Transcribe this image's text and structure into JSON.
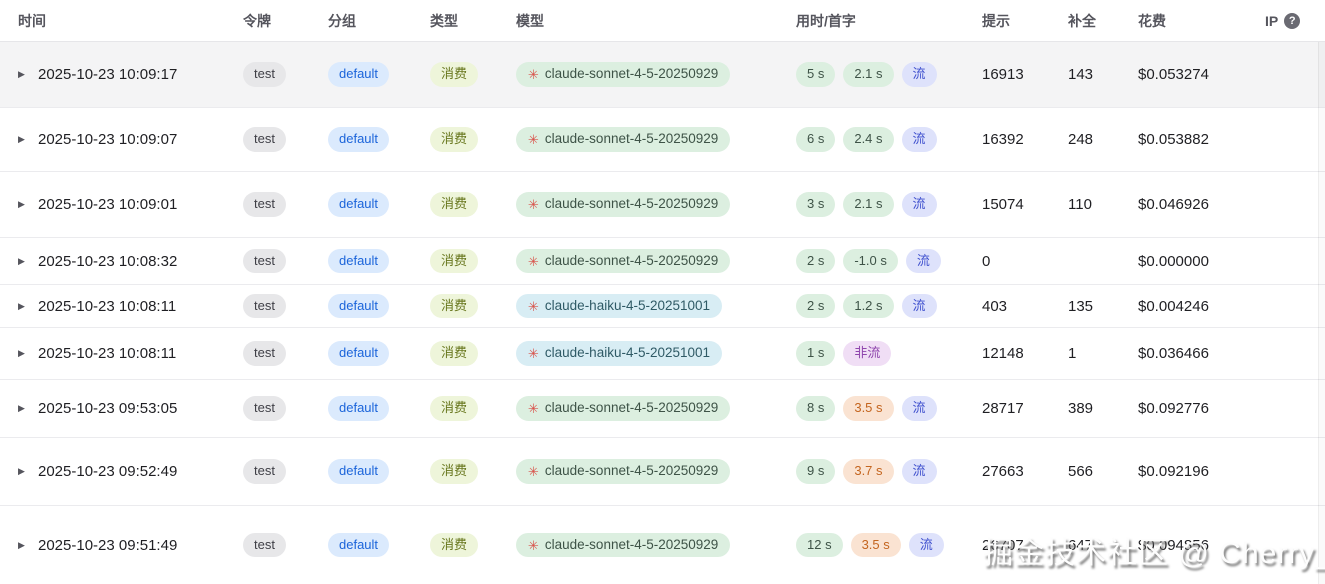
{
  "header": {
    "columns": [
      "时间",
      "令牌",
      "分组",
      "类型",
      "模型",
      "用时/首字",
      "提示",
      "补全",
      "花费",
      "IP"
    ]
  },
  "icons": {
    "expand_caret": "▶",
    "model_provider": "✳",
    "ip_help": "?"
  },
  "colors": {
    "row_highlight": "#f4f4f5",
    "pill_gray_bg": "#e7e7e9",
    "pill_gray_text": "#3f3f46",
    "pill_blue_bg": "#dbeafd",
    "pill_blue_text": "#1b64da",
    "pill_lime_bg": "#eef5da",
    "pill_lime_text": "#67761c",
    "pill_green_bg": "#dcefe0",
    "pill_green_text": "#3e5347",
    "pill_cyan_bg": "#d8edf4",
    "pill_cyan_text": "#2f5a66",
    "pill_orange_bg": "#fae3d2",
    "pill_orange_text": "#c4651f",
    "pill_indigo_bg": "#dee2fb",
    "pill_indigo_text": "#4152cf",
    "pill_purple_bg": "#f0def5",
    "pill_purple_text": "#8f46ad",
    "model_icon": "#d9534b"
  },
  "watermark": "掘金技术社区 @ Cherry_",
  "rows": [
    {
      "time": "2025-10-23 10:09:17",
      "token": "test",
      "group": "default",
      "type": "消费",
      "model": "claude-sonnet-4-5-20250929",
      "model_color": "green",
      "duration": "5 s",
      "first_token": "2.1 s",
      "first_token_color": "green",
      "stream": "流",
      "stream_color": "indigo",
      "prompt": "16913",
      "completion": "143",
      "cost": "$0.053274",
      "highlighted": true
    },
    {
      "time": "2025-10-23 10:09:07",
      "token": "test",
      "group": "default",
      "type": "消费",
      "model": "claude-sonnet-4-5-20250929",
      "model_color": "green",
      "duration": "6 s",
      "first_token": "2.4 s",
      "first_token_color": "green",
      "stream": "流",
      "stream_color": "indigo",
      "prompt": "16392",
      "completion": "248",
      "cost": "$0.053882",
      "highlighted": false
    },
    {
      "time": "2025-10-23 10:09:01",
      "token": "test",
      "group": "default",
      "type": "消费",
      "model": "claude-sonnet-4-5-20250929",
      "model_color": "green",
      "duration": "3 s",
      "first_token": "2.1 s",
      "first_token_color": "green",
      "stream": "流",
      "stream_color": "indigo",
      "prompt": "15074",
      "completion": "110",
      "cost": "$0.046926",
      "highlighted": false
    },
    {
      "time": "2025-10-23 10:08:32",
      "token": "test",
      "group": "default",
      "type": "消费",
      "model": "claude-sonnet-4-5-20250929",
      "model_color": "green",
      "duration": "2 s",
      "first_token": "-1.0 s",
      "first_token_color": "green",
      "stream": "流",
      "stream_color": "indigo",
      "prompt": "0",
      "completion": "",
      "cost": "$0.000000",
      "highlighted": false
    },
    {
      "time": "2025-10-23 10:08:11",
      "token": "test",
      "group": "default",
      "type": "消费",
      "model": "claude-haiku-4-5-20251001",
      "model_color": "cyan",
      "duration": "2 s",
      "first_token": "1.2 s",
      "first_token_color": "green",
      "stream": "流",
      "stream_color": "indigo",
      "prompt": "403",
      "completion": "135",
      "cost": "$0.004246",
      "highlighted": false
    },
    {
      "time": "2025-10-23 10:08:11",
      "token": "test",
      "group": "default",
      "type": "消费",
      "model": "claude-haiku-4-5-20251001",
      "model_color": "cyan",
      "duration": "1 s",
      "first_token": "",
      "first_token_color": "",
      "stream": "非流",
      "stream_color": "purple",
      "prompt": "12148",
      "completion": "1",
      "cost": "$0.036466",
      "highlighted": false
    },
    {
      "time": "2025-10-23 09:53:05",
      "token": "test",
      "group": "default",
      "type": "消费",
      "model": "claude-sonnet-4-5-20250929",
      "model_color": "green",
      "duration": "8 s",
      "first_token": "3.5 s",
      "first_token_color": "orange",
      "stream": "流",
      "stream_color": "indigo",
      "prompt": "28717",
      "completion": "389",
      "cost": "$0.092776",
      "highlighted": false
    },
    {
      "time": "2025-10-23 09:52:49",
      "token": "test",
      "group": "default",
      "type": "消费",
      "model": "claude-sonnet-4-5-20250929",
      "model_color": "green",
      "duration": "9 s",
      "first_token": "3.7 s",
      "first_token_color": "orange",
      "stream": "流",
      "stream_color": "indigo",
      "prompt": "27663",
      "completion": "566",
      "cost": "$0.092196",
      "highlighted": false
    },
    {
      "time": "2025-10-23 09:51:49",
      "token": "test",
      "group": "default",
      "type": "消费",
      "model": "claude-sonnet-4-5-20250929",
      "model_color": "green",
      "duration": "12 s",
      "first_token": "3.5 s",
      "first_token_color": "orange",
      "stream": "流",
      "stream_color": "indigo",
      "prompt": "26707",
      "completion": "647",
      "cost": "$0.094856",
      "highlighted": false
    }
  ]
}
